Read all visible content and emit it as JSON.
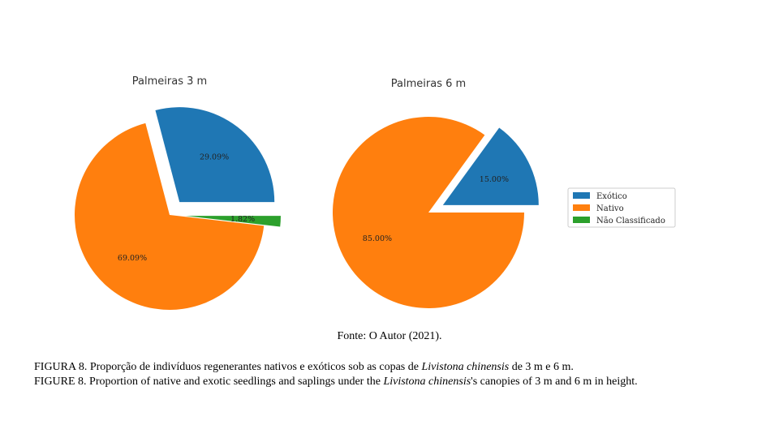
{
  "chart_data": [
    {
      "type": "pie",
      "title": "Palmeiras 3 m",
      "slices": [
        {
          "label": "Exótico",
          "value": 29.09,
          "value_label": "29.09%",
          "color": "#1f77b4",
          "exploded": true
        },
        {
          "label": "Nativo",
          "value": 69.09,
          "value_label": "69.09%",
          "color": "#ff7f0e",
          "exploded": false
        },
        {
          "label": "Não Classificado",
          "value": 1.82,
          "value_label": "1.82%",
          "color": "#2ca02c",
          "exploded": true
        }
      ]
    },
    {
      "type": "pie",
      "title": "Palmeiras 6 m",
      "slices": [
        {
          "label": "Exótico",
          "value": 15.0,
          "value_label": "15.00%",
          "color": "#1f77b4",
          "exploded": true
        },
        {
          "label": "Nativo",
          "value": 85.0,
          "value_label": "85.00%",
          "color": "#ff7f0e",
          "exploded": false
        }
      ]
    }
  ],
  "legend": {
    "placement": "right",
    "entries": [
      {
        "label": "Exótico",
        "color": "#1f77b4"
      },
      {
        "label": "Nativo",
        "color": "#ff7f0e"
      },
      {
        "label": "Não Classificado",
        "color": "#2ca02c"
      }
    ]
  },
  "source_text": "Fonte: O Autor (2021).",
  "caption_pt": {
    "prefix": "FIGURA 8. Proporção de indivíduos regenerantes nativos e exóticos sob as copas de ",
    "species": "Livistona chinensis",
    "suffix": " de 3 m e 6 m."
  },
  "caption_en": {
    "prefix": "FIGURE 8. Proportion of native and exotic seedlings and saplings under the ",
    "species": "Livistona chinensis",
    "suffix": "'s canopies of 3 m and 6 m in height."
  }
}
